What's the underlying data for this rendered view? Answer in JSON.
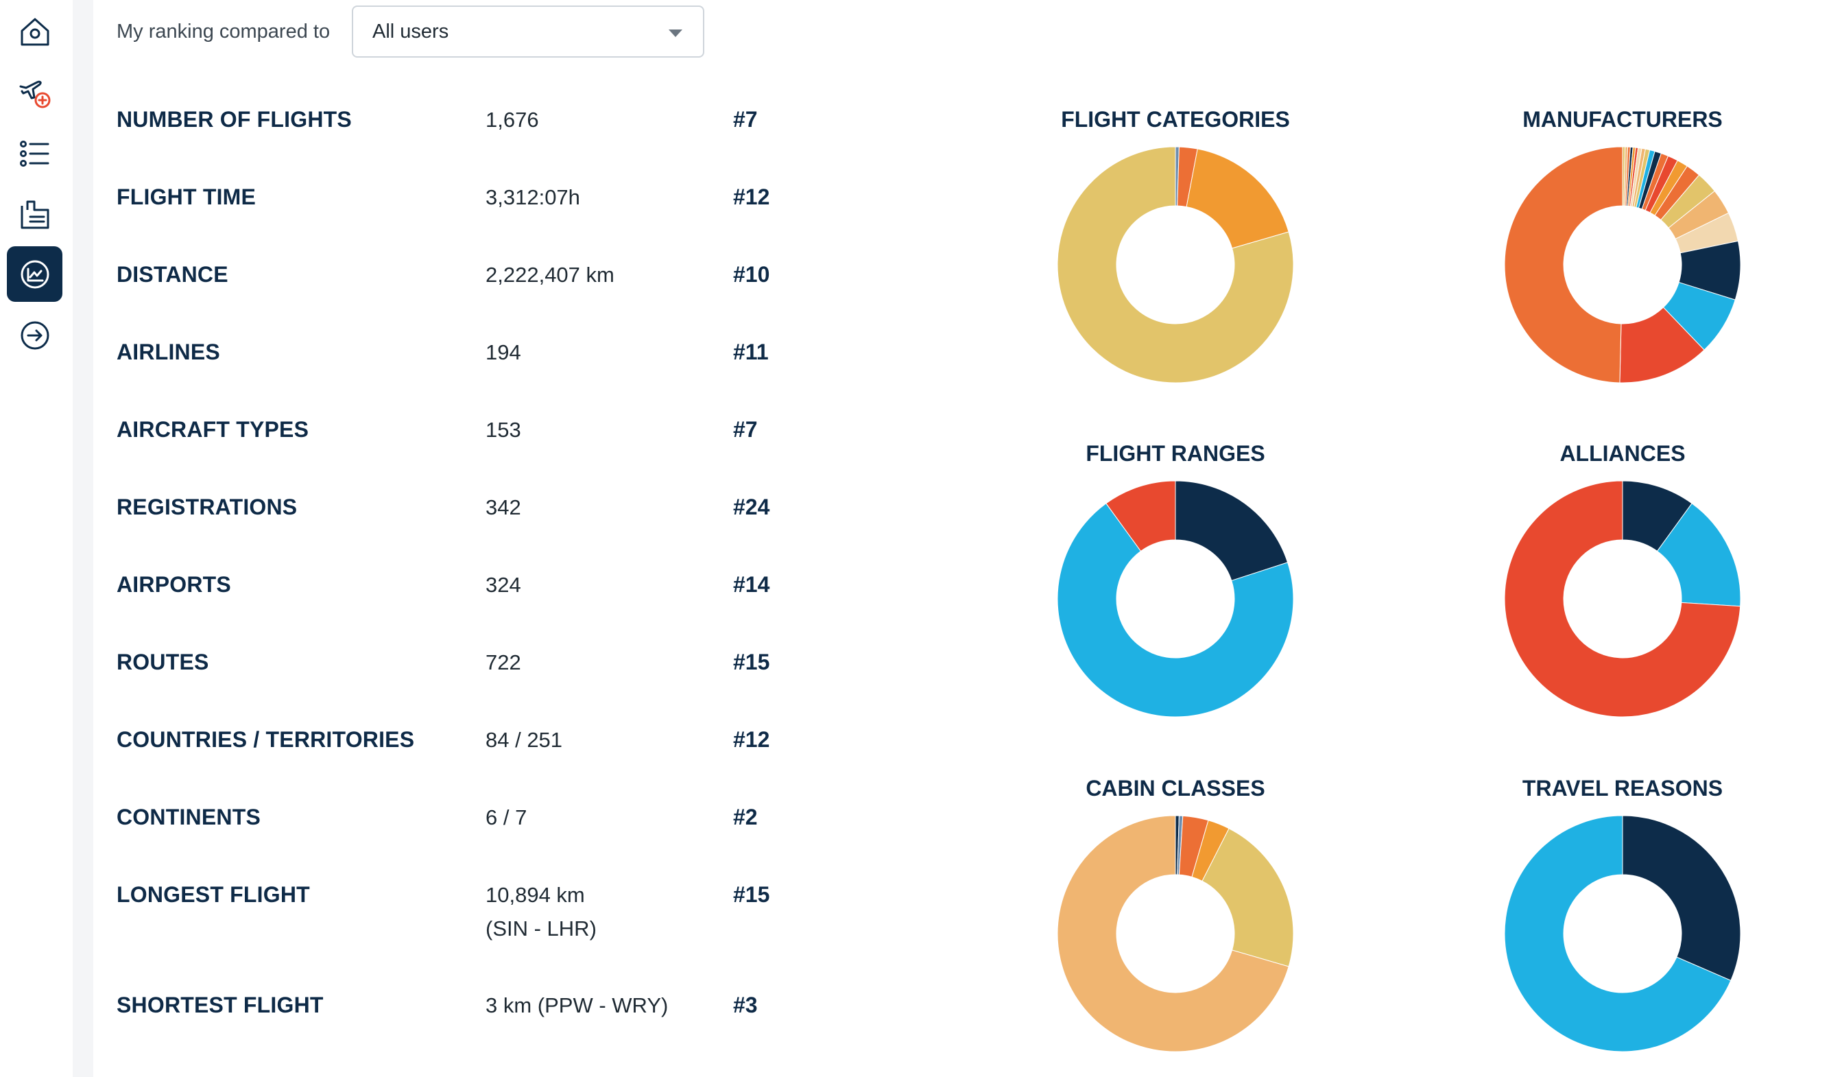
{
  "filter": {
    "label": "My ranking compared to",
    "selected": "All users"
  },
  "stats": [
    {
      "label": "NUMBER OF FLIGHTS",
      "value": "1,676",
      "rank": "#7"
    },
    {
      "label": "FLIGHT TIME",
      "value": "3,312:07h",
      "rank": "#12"
    },
    {
      "label": "DISTANCE",
      "value": "2,222,407 km",
      "rank": "#10"
    },
    {
      "label": "AIRLINES",
      "value": "194",
      "rank": "#11"
    },
    {
      "label": "AIRCRAFT TYPES",
      "value": "153",
      "rank": "#7"
    },
    {
      "label": "REGISTRATIONS",
      "value": "342",
      "rank": "#24"
    },
    {
      "label": "AIRPORTS",
      "value": "324",
      "rank": "#14"
    },
    {
      "label": "ROUTES",
      "value": "722",
      "rank": "#15"
    },
    {
      "label": "COUNTRIES / TERRITORIES",
      "value": "84 / 251",
      "rank": "#12"
    },
    {
      "label": "CONTINENTS",
      "value": "6 / 7",
      "rank": "#2"
    },
    {
      "label": "LONGEST FLIGHT",
      "value": "10,894 km",
      "value2": "(SIN - LHR)",
      "rank": "#15"
    },
    {
      "label": "SHORTEST FLIGHT",
      "value": "3 km (PPW - WRY)",
      "rank": "#3"
    }
  ],
  "sidebar": {
    "icons": [
      "home-icon",
      "add-flight-icon",
      "list-icon",
      "logbook-icon",
      "statistics-icon",
      "arrow-right-circle-icon"
    ],
    "active": "statistics-icon"
  },
  "chart_data": [
    {
      "type": "pie",
      "title": "FLIGHT CATEGORIES",
      "values": [
        0.5,
        2.5,
        17.5,
        79.5
      ],
      "colors": [
        "#6c8eb0",
        "#ec6f35",
        "#f19a31",
        "#e2c46a"
      ]
    },
    {
      "type": "pie",
      "title": "MANUFACTURERS",
      "values": [
        0.35,
        0.35,
        0.35,
        0.35,
        0.35,
        0.35,
        0.5,
        0.5,
        0.6,
        0.7,
        0.9,
        1.0,
        1.4,
        1.5,
        2.0,
        3.0,
        3.5,
        4.0,
        8.0,
        8.0,
        12.5,
        49.45
      ],
      "colors": [
        "#e2c46a",
        "#f0b571",
        "#ec6f35",
        "#0d2c4a",
        "#f19a31",
        "#e8492f",
        "#f2d8b0",
        "#f0b571",
        "#e2c46a",
        "#1fb1e3",
        "#0d2c4a",
        "#ec6f35",
        "#e8492f",
        "#f19a31",
        "#ec6f35",
        "#e2c46a",
        "#f0b571",
        "#f2d8b0",
        "#0d2c4a",
        "#1fb1e3",
        "#e8492f",
        "#ec6f35"
      ]
    },
    {
      "type": "pie",
      "title": "FLIGHT RANGES",
      "values": [
        20,
        70,
        10
      ],
      "colors": [
        "#0d2c4a",
        "#1fb1e3",
        "#e8492f"
      ]
    },
    {
      "type": "pie",
      "title": "ALLIANCES",
      "values": [
        10,
        16,
        74
      ],
      "colors": [
        "#0d2c4a",
        "#1fb1e3",
        "#e8492f"
      ]
    },
    {
      "type": "pie",
      "title": "CABIN CLASSES",
      "values": [
        0.5,
        0.5,
        3.5,
        3.0,
        22.0,
        70.5
      ],
      "colors": [
        "#0d2c4a",
        "#6c8eb0",
        "#ec6f35",
        "#f19a31",
        "#e2c46a",
        "#f0b571"
      ]
    },
    {
      "type": "pie",
      "title": "TRAVEL REASONS",
      "values": [
        31.5,
        68.5
      ],
      "colors": [
        "#0d2c4a",
        "#1fb1e3"
      ]
    }
  ]
}
